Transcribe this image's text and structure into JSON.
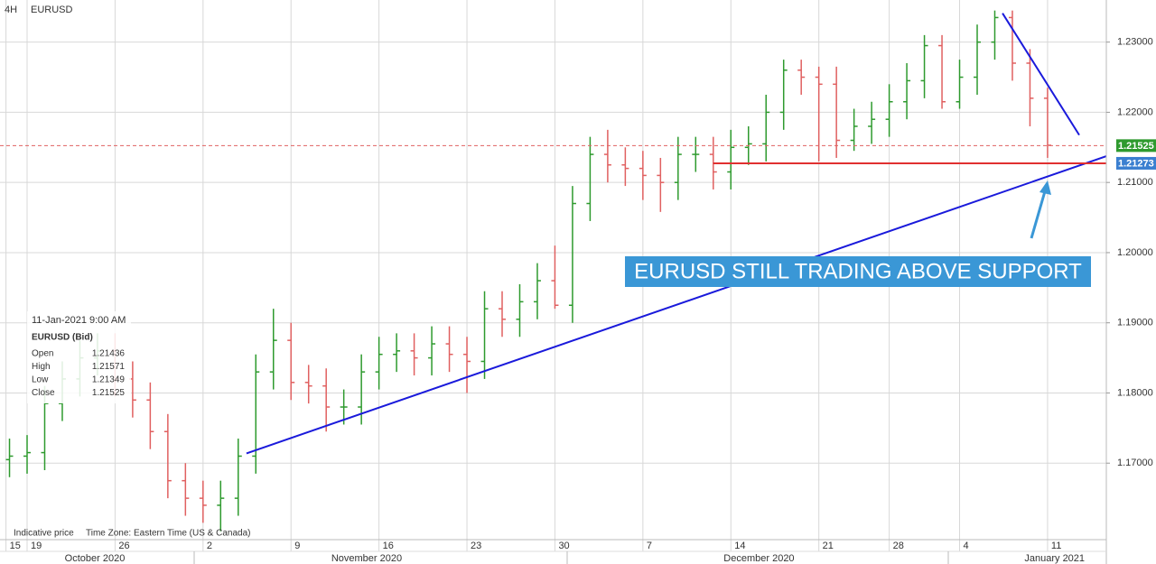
{
  "chart_data": {
    "type": "ohlc",
    "timeframe": "4H",
    "title": "EURUSD",
    "up_color": "#2e9a2e",
    "down_color": "#e06060",
    "xlim": [
      0.46,
      63.34
    ],
    "ylim": [
      1.1591,
      1.236
    ],
    "grid": true,
    "xticks": [
      {
        "value": 0.8,
        "label": "15"
      },
      {
        "value": 2,
        "label": "19"
      },
      {
        "value": 7,
        "label": "26"
      },
      {
        "value": 12,
        "label": "2"
      },
      {
        "value": 17,
        "label": "9"
      },
      {
        "value": 22,
        "label": "16"
      },
      {
        "value": 27,
        "label": "23"
      },
      {
        "value": 32,
        "label": "30"
      },
      {
        "value": 37,
        "label": "7"
      },
      {
        "value": 42,
        "label": "14"
      },
      {
        "value": 47,
        "label": "21"
      },
      {
        "value": 51,
        "label": "28"
      },
      {
        "value": 55,
        "label": "4"
      },
      {
        "value": 60,
        "label": "11"
      }
    ],
    "month_labels": [
      {
        "value": 5.85,
        "label": "October 2020"
      },
      {
        "value": 21.3,
        "label": "November 2020"
      },
      {
        "value": 43.6,
        "label": "December 2020"
      },
      {
        "value": 60.4,
        "label": "January 2021"
      }
    ],
    "yticks": [
      {
        "value": 1.17,
        "label": "1.17000"
      },
      {
        "value": 1.18,
        "label": "1.18000"
      },
      {
        "value": 1.19,
        "label": "1.19000"
      },
      {
        "value": 1.2,
        "label": "1.20000"
      },
      {
        "value": 1.21,
        "label": "1.21000"
      },
      {
        "value": 1.22,
        "label": "1.22000"
      },
      {
        "value": 1.23,
        "label": "1.23000"
      }
    ],
    "x": [
      1,
      2,
      3,
      4,
      5,
      6,
      7,
      8,
      9,
      10,
      11,
      12,
      13,
      14,
      15,
      16,
      17,
      18,
      19,
      20,
      21,
      22,
      23,
      24,
      25,
      26,
      27,
      28,
      29,
      30,
      31,
      32,
      33,
      34,
      35,
      36,
      37,
      38,
      39,
      40,
      41,
      42,
      43,
      44,
      45,
      46,
      47,
      48,
      49,
      50,
      51,
      52,
      53,
      54,
      55,
      56,
      57,
      58,
      59,
      60
    ],
    "open": [
      1.1705,
      1.171,
      1.1715,
      1.1785,
      1.182,
      1.185,
      1.186,
      1.182,
      1.179,
      1.1745,
      1.1675,
      1.165,
      1.164,
      1.165,
      1.171,
      1.183,
      1.1875,
      1.1815,
      1.181,
      1.178,
      1.178,
      1.183,
      1.1855,
      1.186,
      1.185,
      1.187,
      1.1855,
      1.1845,
      1.192,
      1.1905,
      1.193,
      1.196,
      1.1925,
      1.207,
      1.214,
      1.2125,
      1.212,
      1.211,
      1.21,
      1.214,
      1.214,
      1.2115,
      1.215,
      1.2155,
      1.22,
      1.226,
      1.225,
      1.224,
      1.216,
      1.218,
      1.219,
      1.2215,
      1.2245,
      1.2295,
      1.2215,
      1.225,
      1.23,
      1.2335,
      1.227,
      1.222
    ],
    "high": [
      1.1735,
      1.174,
      1.181,
      1.1845,
      1.1875,
      1.1885,
      1.1885,
      1.1845,
      1.1815,
      1.177,
      1.17,
      1.1675,
      1.1675,
      1.1735,
      1.1855,
      1.192,
      1.19,
      1.184,
      1.1835,
      1.1805,
      1.1855,
      1.188,
      1.1885,
      1.1885,
      1.1895,
      1.1895,
      1.188,
      1.1945,
      1.1945,
      1.1955,
      1.1985,
      1.201,
      1.2095,
      1.2165,
      1.2175,
      1.215,
      1.2145,
      1.2135,
      1.2165,
      1.2165,
      1.2165,
      1.2175,
      1.218,
      1.2225,
      1.2275,
      1.2275,
      1.2265,
      1.2265,
      1.2205,
      1.2215,
      1.224,
      1.227,
      1.231,
      1.231,
      1.2275,
      1.2325,
      1.2345,
      1.2345,
      1.229,
      1.2235
    ],
    "low": [
      1.168,
      1.1685,
      1.169,
      1.176,
      1.1795,
      1.1825,
      1.1795,
      1.1765,
      1.172,
      1.165,
      1.1625,
      1.1615,
      1.1603,
      1.1625,
      1.1685,
      1.1805,
      1.179,
      1.1785,
      1.1745,
      1.1755,
      1.1755,
      1.1805,
      1.183,
      1.1825,
      1.1825,
      1.183,
      1.18,
      1.182,
      1.188,
      1.188,
      1.1905,
      1.192,
      1.19,
      1.2045,
      1.21,
      1.2095,
      1.2075,
      1.2058,
      1.2075,
      1.2115,
      1.209,
      1.209,
      1.2125,
      1.213,
      1.2175,
      1.2225,
      1.213,
      1.2135,
      1.2145,
      1.2155,
      1.2165,
      1.219,
      1.222,
      1.2205,
      1.2205,
      1.2225,
      1.2275,
      1.2245,
      1.218,
      1.2135
    ],
    "close": [
      1.171,
      1.1715,
      1.1785,
      1.182,
      1.185,
      1.186,
      1.182,
      1.179,
      1.1745,
      1.1675,
      1.165,
      1.164,
      1.165,
      1.171,
      1.183,
      1.1875,
      1.1815,
      1.181,
      1.178,
      1.178,
      1.183,
      1.1855,
      1.186,
      1.185,
      1.187,
      1.1855,
      1.1845,
      1.192,
      1.1905,
      1.193,
      1.196,
      1.1925,
      1.207,
      1.214,
      1.2125,
      1.212,
      1.211,
      1.21,
      1.214,
      1.214,
      1.2115,
      1.215,
      1.2155,
      1.22,
      1.226,
      1.225,
      1.224,
      1.216,
      1.218,
      1.219,
      1.2215,
      1.2245,
      1.2295,
      1.2215,
      1.225,
      1.23,
      1.2335,
      1.227,
      1.222,
      1.2153
    ],
    "lines": [
      {
        "color": "#1a1adb",
        "x": [
          14.47,
          63.86
        ],
        "y": [
          1.17139,
          1.21419
        ]
      },
      {
        "color": "#1a1adb",
        "x": [
          57.44,
          61.8
        ],
        "y": [
          1.23411,
          1.21676
        ]
      },
      {
        "color": "#e03030",
        "x": [
          41.0,
          63.34
        ],
        "y": [
          1.21273,
          1.21273
        ]
      }
    ],
    "price_tags": [
      {
        "value": 1.21525,
        "color": "#2e9a2e",
        "dashed": true
      },
      {
        "value": 1.21273,
        "color": "#3a7fd0",
        "dashed": false
      }
    ],
    "annotation": "EURUSD STILL TRADING ABOVE SUPPORT",
    "tooltip": {
      "time": "11-Jan-2021 9:00 AM",
      "symbol": "EURUSD (Bid)",
      "rows": [
        {
          "label": "Open",
          "value": "1.21436"
        },
        {
          "label": "High",
          "value": "1.21571"
        },
        {
          "label": "Low",
          "value": "1.21349"
        },
        {
          "label": "Close",
          "value": "1.21525"
        }
      ]
    },
    "footer": [
      "Indicative price",
      "Time Zone: Eastern Time (US & Canada)"
    ]
  }
}
